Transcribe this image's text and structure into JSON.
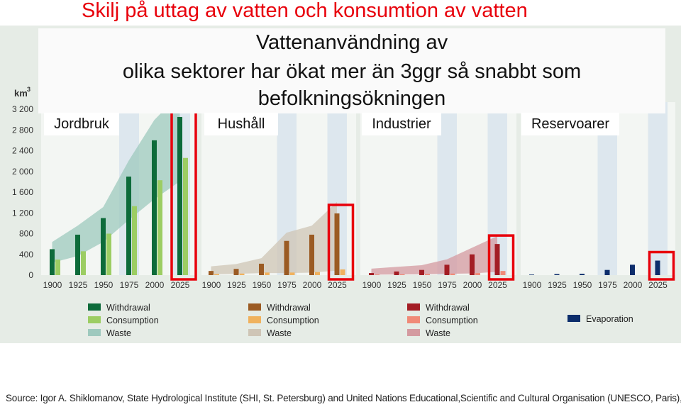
{
  "slide": {
    "title": "Skilj på uttag av vatten och konsumtion av vatten",
    "headline": [
      "Vattenanvändning av",
      "olika sektorer har ökat mer än 3ggr så snabbt som",
      "befolkningsökningen"
    ],
    "source": "Source: Igor A. Shiklomanov, State Hydrological Institute (SHI, St. Petersburg) and United Nations Educational,Scientific and Cultural Organisation (UNESCO, Paris), 1999."
  },
  "chart_data": {
    "type": "bar",
    "unit_label": "km",
    "unit_sup": "3",
    "y_ticks": [
      "3 200",
      "2 800",
      "2 400",
      "2 000",
      "1 600",
      "1 200",
      "800",
      "400",
      "0"
    ],
    "ylim": [
      0,
      3200
    ],
    "categories": [
      "1900",
      "1925",
      "1950",
      "1975",
      "2000",
      "2025"
    ],
    "panels": [
      {
        "label": "Jordbruk",
        "colors": {
          "withdrawal": "#0d6b3a",
          "consumption": "#9ccd63",
          "waste": "#9ec9be"
        },
        "legend": [
          "Withdrawal",
          "Consumption",
          "Waste"
        ],
        "series": [
          {
            "name": "Withdrawal",
            "values": [
              500,
              780,
              1100,
              1900,
              2600,
              3050
            ]
          },
          {
            "name": "Consumption",
            "values": [
              300,
              460,
              800,
              1330,
              1830,
              2260
            ]
          }
        ],
        "highlight": 5
      },
      {
        "label": "Hushåll",
        "colors": {
          "withdrawal": "#9b5b23",
          "consumption": "#f0b25e",
          "waste": "#cfc5b6"
        },
        "legend": [
          "Withdrawal",
          "Consumption",
          "Waste"
        ],
        "series": [
          {
            "name": "Withdrawal",
            "values": [
              80,
              120,
              220,
              660,
              780,
              1190
            ]
          },
          {
            "name": "Consumption",
            "values": [
              20,
              30,
              50,
              50,
              60,
              110
            ]
          }
        ],
        "highlight": 5
      },
      {
        "label": "Industrier",
        "colors": {
          "withdrawal": "#a31d24",
          "consumption": "#f08a78",
          "waste": "#d49aa0"
        },
        "legend": [
          "Withdrawal",
          "Consumption",
          "Waste"
        ],
        "series": [
          {
            "name": "Withdrawal",
            "values": [
              40,
              70,
              100,
              200,
              400,
              600
            ]
          },
          {
            "name": "Consumption",
            "values": [
              10,
              15,
              20,
              30,
              40,
              80
            ]
          }
        ],
        "highlight": 5
      },
      {
        "label": "Reservoarer",
        "colors": {
          "evaporation": "#0c2d6b"
        },
        "legend": [
          "Evaporation"
        ],
        "series": [
          {
            "name": "Evaporation",
            "values": [
              10,
              20,
              25,
              100,
              200,
              280
            ]
          }
        ],
        "highlight": 5
      }
    ],
    "grid": false,
    "legend_position": "bottom"
  }
}
